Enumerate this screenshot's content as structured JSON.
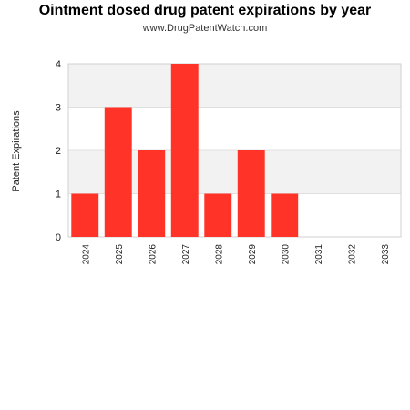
{
  "chart_data": {
    "type": "bar",
    "title": "Ointment dosed drug patent expirations by year",
    "subtitle": "www.DrugPatentWatch.com",
    "xlabel": "",
    "ylabel": "Patent Expirations",
    "categories": [
      "2024",
      "2025",
      "2026",
      "2027",
      "2028",
      "2029",
      "2030",
      "2031",
      "2032",
      "2033"
    ],
    "values": [
      1,
      3,
      2,
      4,
      1,
      2,
      1,
      0,
      0,
      0
    ],
    "ylim": [
      0,
      4
    ],
    "yticks": [
      "0",
      "1",
      "2",
      "3",
      "4"
    ],
    "grid": true,
    "bar_color": "#ff3328",
    "band_color": "#f2f2f2",
    "legend": "none"
  }
}
